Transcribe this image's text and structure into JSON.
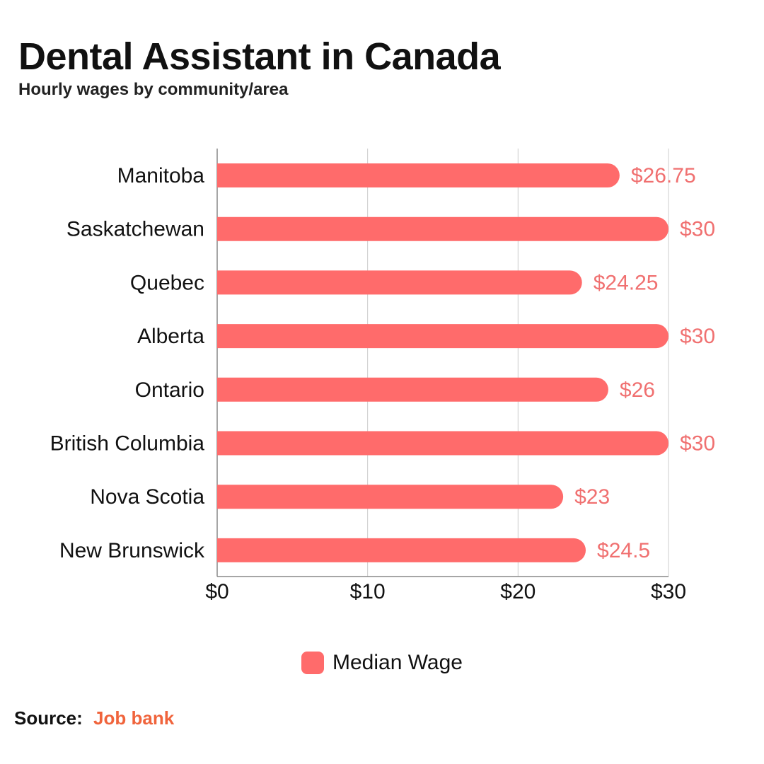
{
  "header": {
    "title": "Dental Assistant in Canada",
    "subtitle": "Hourly wages by community/area"
  },
  "colors": {
    "bar": "#ff6b6b",
    "value_label": "#f07070",
    "grid": "#cccccc",
    "axis": "#888888",
    "source_link": "#f0643c"
  },
  "chart_data": {
    "type": "bar",
    "orientation": "horizontal",
    "categories": [
      "Manitoba",
      "Saskatchewan",
      "Quebec",
      "Alberta",
      "Ontario",
      "British Columbia",
      "Nova Scotia",
      "New Brunswick"
    ],
    "series": [
      {
        "name": "Median Wage",
        "values": [
          26.75,
          30,
          24.25,
          30,
          26,
          30,
          23,
          24.5
        ]
      }
    ],
    "value_labels": [
      "$26.75",
      "$30",
      "$24.25",
      "$30",
      "$26",
      "$30",
      "$23",
      "$24.5"
    ],
    "xlim": [
      0,
      30
    ],
    "ticks": [
      0,
      10,
      20,
      30
    ],
    "tick_labels": [
      "$0",
      "$10",
      "$20",
      "$30"
    ],
    "grid": true,
    "legend_position": "bottom"
  },
  "legend": {
    "label": "Median Wage"
  },
  "source": {
    "label": "Source:",
    "link_text": "Job bank"
  }
}
